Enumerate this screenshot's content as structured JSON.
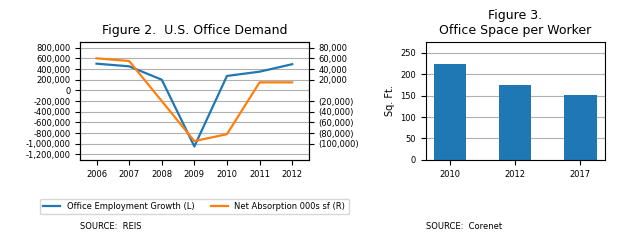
{
  "chart_data": [
    {
      "type": "line",
      "title": "Figure 2.  U.S. Office Demand",
      "x": [
        2006,
        2007,
        2008,
        2009,
        2010,
        2011,
        2012
      ],
      "xlim": [
        2005.5,
        2012.5
      ],
      "xticks": [
        2006,
        2007,
        2008,
        2009,
        2010,
        2011,
        2012
      ],
      "series": [
        {
          "name": "Office Employment Growth (L)",
          "values": [
            500000,
            450000,
            200000,
            -1050000,
            270000,
            350000,
            490000
          ]
        },
        {
          "name": "Net Absorption 000s sf (R)",
          "axis": "y2",
          "values": [
            60000,
            55000,
            -20000,
            -95000,
            -82000,
            15000,
            15000
          ]
        }
      ],
      "ylim": [
        -1300000,
        900000
      ],
      "yticks": [
        {
          "value": 800000,
          "label": "800,000"
        },
        {
          "value": 600000,
          "label": "600,000"
        },
        {
          "value": 400000,
          "label": "400,000"
        },
        {
          "value": 200000,
          "label": "200,000"
        },
        0,
        {
          "value": -200000,
          "label": "-200,000"
        },
        {
          "value": -400000,
          "label": "-400,000"
        },
        {
          "value": -600000,
          "label": "-600,000"
        },
        {
          "value": -800000,
          "label": "-800,000"
        },
        {
          "value": -1000000,
          "label": "-1,000,000"
        },
        {
          "value": -1200000,
          "label": "-1,200,000"
        }
      ],
      "y2lim": [
        -130000,
        90000
      ],
      "y2ticks": [
        {
          "value": 80000,
          "label": "80,000"
        },
        {
          "value": 60000,
          "label": "60,000"
        },
        {
          "value": 40000,
          "label": "40,000"
        },
        {
          "value": 20000,
          "label": "20,000"
        },
        {
          "value": -20000,
          "label": "(20,000)"
        },
        {
          "value": -40000,
          "label": "(40,000)"
        },
        {
          "value": -60000,
          "label": "(60,000)"
        },
        {
          "value": -80000,
          "label": "(80,000)"
        },
        {
          "value": -100000,
          "label": "(100,000)"
        }
      ],
      "grid": true,
      "legend": "lower center",
      "annotations": [
        "SOURCE:  REIS"
      ]
    },
    {
      "type": "bar",
      "title": "Figure 3.\nOffice Space per Worker",
      "categories": [
        "2010",
        "2012",
        "2017"
      ],
      "values": [
        225,
        175,
        152
      ],
      "ylabel": "Sq. Ft.",
      "ylim": [
        0,
        275
      ],
      "yticks": [
        0,
        50,
        100,
        150,
        200,
        250
      ],
      "grid": true,
      "annotations": [
        "SOURCE:  Corenet"
      ]
    }
  ]
}
